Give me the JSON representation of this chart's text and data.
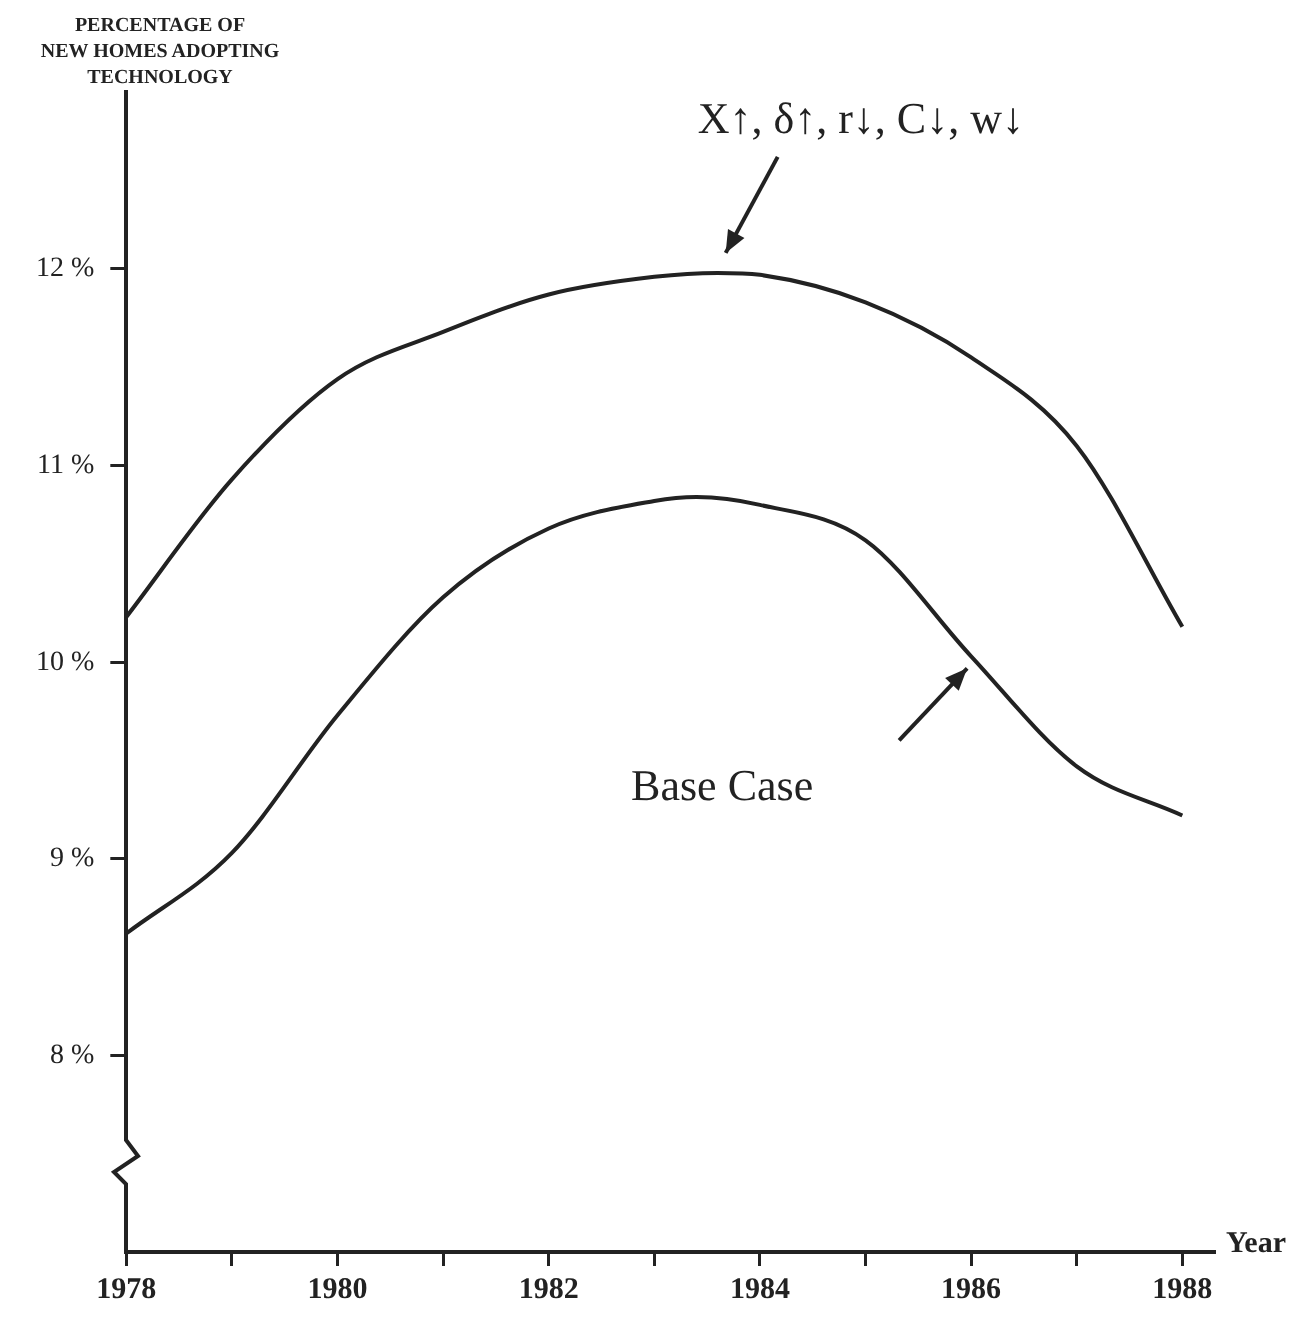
{
  "chart_data": {
    "type": "line",
    "ylabel": "PERCENTAGE OF\nNEW HOMES ADOPTING\nTECHNOLOGY",
    "xlabel": "Year",
    "xlim": [
      1978,
      1988.3
    ],
    "ylim": [
      7,
      12.9
    ],
    "xticks": [
      1978,
      {
        "value": 1979,
        "label": null
      },
      1980,
      {
        "value": 1981,
        "label": null
      },
      1982,
      {
        "value": 1983,
        "label": null
      },
      1984,
      {
        "value": 1985,
        "label": null
      },
      1986,
      {
        "value": 1987,
        "label": null
      },
      1988
    ],
    "yticks": [
      {
        "value": 8,
        "label": "8 %"
      },
      {
        "value": 9,
        "label": "9 %"
      },
      {
        "value": 10,
        "label": "10 %"
      },
      {
        "value": 11,
        "label": "11 %"
      },
      {
        "value": 12,
        "label": "12 %"
      }
    ],
    "grid": false,
    "legend": false,
    "marker": "none",
    "line_style": "solid",
    "series": [
      {
        "color": "#222222",
        "x": [
          1978,
          1979,
          1980,
          1981,
          1982,
          1983,
          1983.6,
          1984,
          1985,
          1986,
          1987,
          1988
        ],
        "values": [
          10.23,
          10.93,
          11.44,
          11.68,
          11.87,
          11.96,
          11.98,
          11.97,
          11.83,
          11.55,
          11.1,
          10.18
        ]
      },
      {
        "name": "Base Case",
        "color": "#222222",
        "x": [
          1978,
          1979,
          1980,
          1981,
          1982,
          1983,
          1983.4,
          1984,
          1985,
          1986,
          1987,
          1988
        ],
        "values": [
          8.62,
          9.03,
          9.73,
          10.33,
          10.68,
          10.82,
          10.84,
          10.8,
          10.62,
          10.03,
          9.47,
          9.22
        ]
      }
    ],
    "annotations": [
      {
        "text": "X↑, δ↑, r↓, C↓, w↓",
        "x": 1983.6,
        "y": 11.98
      }
    ]
  }
}
